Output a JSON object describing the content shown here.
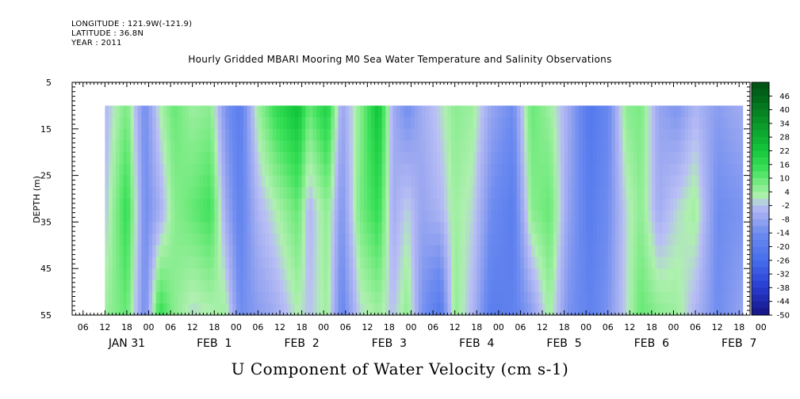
{
  "header": {
    "longitude": "LONGITUDE : 121.9W(-121.9)",
    "latitude": "LATITUDE : 36.8N",
    "year": "YEAR : 2011",
    "title": "Hourly Gridded MBARI Mooring M0 Sea Water Temperature and Salinity Observations"
  },
  "chart_data": {
    "type": "heatmap",
    "title": "Hourly Gridded MBARI Mooring M0 Sea Water Temperature and Salinity Observations",
    "xlabel": "U Component of Water Velocity (cm s-1)",
    "ylabel": "DEPTH (m)",
    "xlim_hours": [
      -21,
      165
    ],
    "ylim": [
      55,
      5
    ],
    "data_range_hours": [
      -12,
      163
    ],
    "data_depth_range": [
      10,
      55
    ],
    "y_ticks": [
      5,
      15,
      25,
      35,
      45,
      55
    ],
    "x_hour_ticks": [
      "06",
      "12",
      "18",
      "00",
      "06",
      "12",
      "18",
      "00",
      "06",
      "12",
      "18",
      "00",
      "06",
      "12",
      "18",
      "00",
      "06",
      "12",
      "18",
      "00",
      "06",
      "12",
      "18",
      "00",
      "06",
      "12",
      "18",
      "00",
      "06",
      "12",
      "18",
      "00"
    ],
    "x_day_labels": [
      {
        "label": "JAN 31",
        "hour": -6
      },
      {
        "label": "FEB  1",
        "hour": 18
      },
      {
        "label": "FEB  2",
        "hour": 42
      },
      {
        "label": "FEB  3",
        "hour": 66
      },
      {
        "label": "FEB  4",
        "hour": 90
      },
      {
        "label": "FEB  5",
        "hour": 114
      },
      {
        "label": "FEB  6",
        "hour": 138
      },
      {
        "label": "FEB  7",
        "hour": 162
      }
    ],
    "colorbar": {
      "labels": [
        "46",
        "40",
        "34",
        "28",
        "22",
        "16",
        "10",
        "4",
        "-2",
        "-8",
        "-14",
        "-20",
        "-26",
        "-32",
        "-38",
        "-44",
        "-50"
      ],
      "min": -50,
      "max": 52,
      "step": 3
    },
    "velocity_profile": {
      "hours": [
        -12,
        -6,
        -1,
        3,
        7,
        12,
        17,
        21,
        25,
        30,
        35,
        41,
        44,
        49,
        53,
        58,
        63,
        67,
        71,
        75,
        80,
        84,
        89,
        94,
        100,
        105,
        110,
        115,
        121,
        126,
        131,
        135,
        140,
        145,
        150,
        156,
        163
      ],
      "surface": [
        -4,
        8,
        -14,
        2,
        10,
        4,
        6,
        -12,
        -20,
        4,
        16,
        24,
        10,
        20,
        -8,
        6,
        24,
        -6,
        -14,
        -6,
        0,
        6,
        4,
        -8,
        -14,
        10,
        4,
        -6,
        -22,
        -16,
        6,
        8,
        -8,
        -12,
        -4,
        -10,
        -6
      ],
      "mid": [
        -2,
        16,
        -14,
        -6,
        6,
        10,
        14,
        -6,
        -18,
        -4,
        2,
        10,
        -4,
        6,
        -12,
        8,
        16,
        -6,
        0,
        -8,
        -4,
        4,
        0,
        -14,
        -20,
        6,
        10,
        -8,
        -20,
        -14,
        0,
        6,
        -6,
        0,
        4,
        -14,
        -12
      ],
      "bottom": [
        4,
        10,
        -14,
        16,
        6,
        0,
        2,
        4,
        -14,
        -10,
        -6,
        2,
        -2,
        4,
        -16,
        0,
        4,
        -2,
        6,
        -12,
        -22,
        6,
        -4,
        -20,
        -18,
        -10,
        4,
        -12,
        -18,
        -12,
        0,
        10,
        6,
        4,
        -4,
        -14,
        -8
      ]
    }
  }
}
